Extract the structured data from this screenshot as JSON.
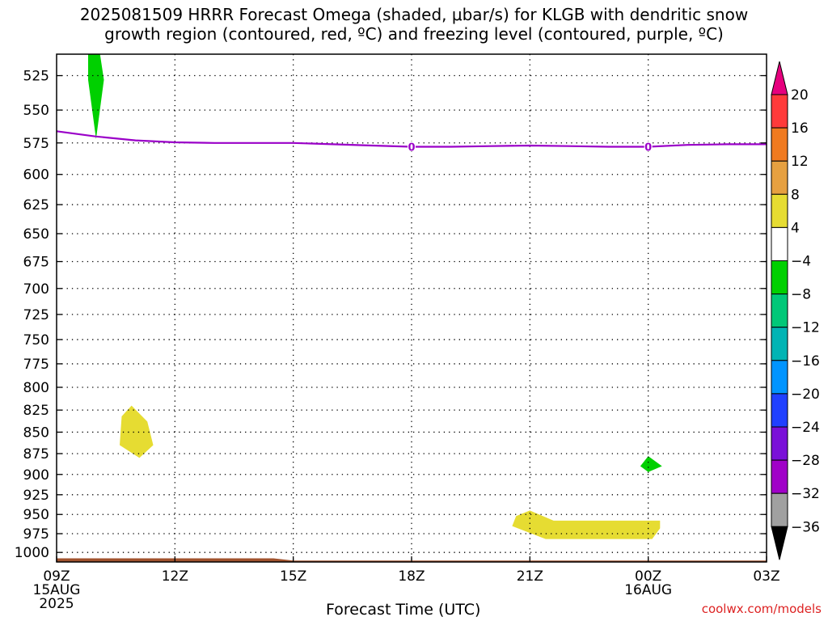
{
  "title": {
    "line1": "2025081509 HRRR Forecast Omega (shaded, μbar/s) for KLGB with dendritic snow",
    "line2": "growth region (contoured, red, ºC) and freezing level (contoured, purple, ºC)"
  },
  "xlabel": "Forecast Time (UTC)",
  "credit": "coolwx.com/models",
  "chart_data": {
    "type": "heatmap",
    "y_axis": {
      "label": "",
      "ticks": [
        "525",
        "550",
        "575",
        "600",
        "625",
        "650",
        "675",
        "700",
        "725",
        "750",
        "775",
        "800",
        "825",
        "850",
        "875",
        "900",
        "925",
        "950",
        "975",
        "1000"
      ],
      "range_hpa": [
        510,
        1013
      ],
      "scale": "log-pressure"
    },
    "x_axis": {
      "range_hours": [
        9,
        27
      ],
      "ticks": [
        {
          "hour": 9,
          "label": "09Z",
          "sub": [
            "15AUG",
            "2025"
          ]
        },
        {
          "hour": 12,
          "label": "12Z",
          "sub": []
        },
        {
          "hour": 15,
          "label": "15Z",
          "sub": []
        },
        {
          "hour": 18,
          "label": "18Z",
          "sub": []
        },
        {
          "hour": 21,
          "label": "21Z",
          "sub": []
        },
        {
          "hour": 24,
          "label": "00Z",
          "sub": [
            "16AUG"
          ]
        },
        {
          "hour": 27,
          "label": "03Z",
          "sub": []
        }
      ]
    },
    "grid": true,
    "colorbar": {
      "ticks": [
        "20",
        "16",
        "12",
        "8",
        "4",
        "-4",
        "-8",
        "-12",
        "-16",
        "-20",
        "-24",
        "-28",
        "-32",
        "-36"
      ],
      "colors": [
        "#e6007e",
        "#ff3a3a",
        "#f07a20",
        "#e6a040",
        "#e6dc32",
        "#ffffff",
        "#00d000",
        "#00c878",
        "#00b4b4",
        "#0094ff",
        "#2040ff",
        "#7a10d8",
        "#a000c8",
        "#a0a0a0",
        "#000000"
      ]
    },
    "freezing_level": {
      "label": "0",
      "color": "#9a00c8",
      "x_hours": [
        9,
        10,
        11,
        12,
        13,
        14,
        15,
        16,
        17,
        18,
        19,
        20,
        21,
        22,
        23,
        24,
        25,
        26,
        27
      ],
      "pressure_hpa": [
        566,
        570,
        573,
        574.5,
        575,
        575,
        575,
        576,
        577,
        578,
        578,
        577.5,
        577,
        577.5,
        578,
        578,
        576.5,
        576,
        576
      ]
    },
    "shaded_regions": [
      {
        "name": "ascent-upper-left",
        "color": "#00d000",
        "points": [
          [
            9.8,
            510
          ],
          [
            10.1,
            510
          ],
          [
            10.2,
            528
          ],
          [
            10.0,
            572
          ],
          [
            9.8,
            528
          ]
        ]
      },
      {
        "name": "descent-850",
        "color": "#e6dc32",
        "points": [
          [
            10.9,
            820
          ],
          [
            11.3,
            838
          ],
          [
            11.45,
            865
          ],
          [
            11.1,
            880
          ],
          [
            10.6,
            865
          ],
          [
            10.65,
            832
          ]
        ]
      },
      {
        "name": "ascent-890",
        "color": "#00d000",
        "points": [
          [
            24.0,
            878
          ],
          [
            24.35,
            890
          ],
          [
            24.0,
            897
          ],
          [
            23.8,
            890
          ]
        ]
      },
      {
        "name": "descent-960",
        "color": "#e6dc32",
        "points": [
          [
            21.0,
            945
          ],
          [
            21.6,
            958
          ],
          [
            24.3,
            958
          ],
          [
            24.3,
            968
          ],
          [
            24.1,
            982
          ],
          [
            21.4,
            982
          ],
          [
            20.55,
            965
          ],
          [
            20.65,
            952
          ]
        ]
      }
    ],
    "terrain": {
      "color": "#a0522d",
      "top_hpa_left": 1008,
      "top_hpa_right": 1011
    }
  }
}
